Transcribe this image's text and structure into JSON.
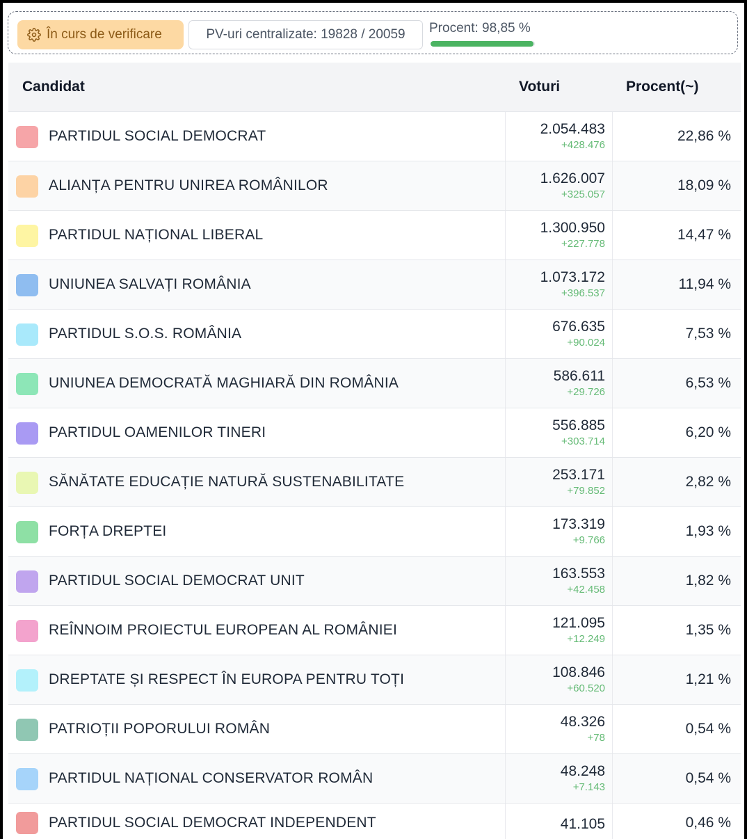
{
  "status": {
    "verification_label": "În curs de verificare",
    "pv_label": "PV-uri centralizate: 19828 / 20059",
    "procent_label": "Procent: 98,85 %",
    "progress_percent": 98.85,
    "progress_color": "#4bb462",
    "icon": "gear-icon"
  },
  "table": {
    "headers": {
      "candidate": "Candidat",
      "votes": "Voturi",
      "percent": "Procent(~)"
    },
    "rows": [
      {
        "color": "#f6a5a8",
        "name": "PARTIDUL SOCIAL DEMOCRAT",
        "votes": "2.054.483",
        "delta": "+428.476",
        "percent": "22,86 %"
      },
      {
        "color": "#fdd3a5",
        "name": "ALIANȚA PENTRU UNIREA ROMÂNILOR",
        "votes": "1.626.007",
        "delta": "+325.057",
        "percent": "18,09 %"
      },
      {
        "color": "#fef5a3",
        "name": "PARTIDUL NAȚIONAL LIBERAL",
        "votes": "1.300.950",
        "delta": "+227.778",
        "percent": "14,47 %"
      },
      {
        "color": "#8fbdf0",
        "name": "UNIUNEA SALVAȚI ROMÂNIA",
        "votes": "1.073.172",
        "delta": "+396.537",
        "percent": "11,94 %"
      },
      {
        "color": "#a9e9fb",
        "name": "PARTIDUL S.O.S. ROMÂNIA",
        "votes": "676.635",
        "delta": "+90.024",
        "percent": "7,53 %"
      },
      {
        "color": "#8de6b7",
        "name": "UNIUNEA DEMOCRATĂ MAGHIARĂ DIN ROMÂNIA",
        "votes": "586.611",
        "delta": "+29.726",
        "percent": "6,53 %"
      },
      {
        "color": "#a99af3",
        "name": "PARTIDUL OAMENILOR TINERI",
        "votes": "556.885",
        "delta": "+303.714",
        "percent": "6,20 %"
      },
      {
        "color": "#e9f7b3",
        "name": "SĂNĂTATE EDUCAȚIE NATURĂ SUSTENABILITATE",
        "votes": "253.171",
        "delta": "+79.852",
        "percent": "2,82 %"
      },
      {
        "color": "#8ee0a5",
        "name": "FORȚA DREPTEI",
        "votes": "173.319",
        "delta": "+9.766",
        "percent": "1,93 %"
      },
      {
        "color": "#c0a5ee",
        "name": "PARTIDUL SOCIAL DEMOCRAT UNIT",
        "votes": "163.553",
        "delta": "+42.458",
        "percent": "1,82 %"
      },
      {
        "color": "#f3a3cd",
        "name": "REÎNNOIM PROIECTUL EUROPEAN AL ROMÂNIEI",
        "votes": "121.095",
        "delta": "+12.249",
        "percent": "1,35 %"
      },
      {
        "color": "#b3f1fb",
        "name": "DREPTATE ȘI RESPECT ÎN EUROPA PENTRU TOȚI",
        "votes": "108.846",
        "delta": "+60.520",
        "percent": "1,21 %"
      },
      {
        "color": "#90c7b3",
        "name": "PATRIOȚII POPORULUI ROMÂN",
        "votes": "48.326",
        "delta": "+78",
        "percent": "0,54 %"
      },
      {
        "color": "#a6d4fa",
        "name": "PARTIDUL NAȚIONAL CONSERVATOR ROMÂN",
        "votes": "48.248",
        "delta": "+7.143",
        "percent": "0,54 %"
      },
      {
        "color": "#f19b9b",
        "name": "PARTIDUL SOCIAL DEMOCRAT INDEPENDENT",
        "votes": "41.105",
        "delta": "",
        "percent": "0,46 %"
      }
    ]
  }
}
